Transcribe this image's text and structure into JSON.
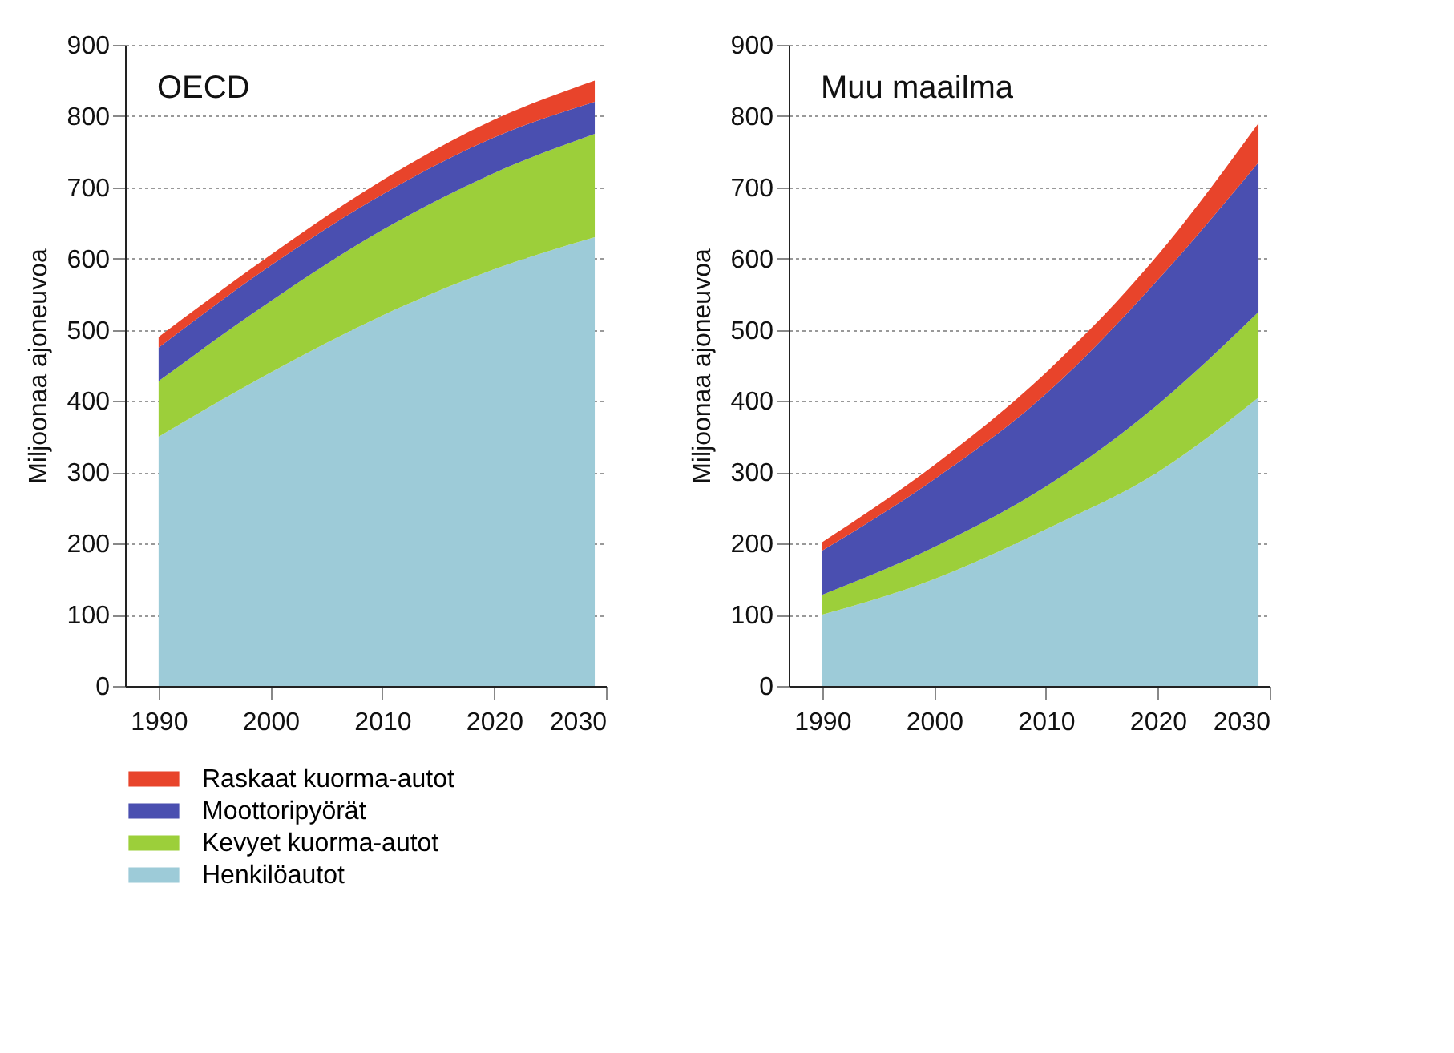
{
  "chart_data": [
    {
      "type": "area",
      "stacked": true,
      "title": "OECD",
      "ylabel": "Miljoonaa ajoneuvoa",
      "x": [
        1990,
        2000,
        2010,
        2020,
        2029
      ],
      "xlim": [
        1987,
        2030
      ],
      "xticks": [
        1990,
        2000,
        2010,
        2020,
        2030
      ],
      "ylim": [
        0,
        900
      ],
      "yticks": [
        0,
        100,
        200,
        300,
        400,
        500,
        600,
        700,
        800,
        900
      ],
      "grid": "y",
      "legend": "bottom",
      "series": [
        {
          "name": "Henkilöautot",
          "color": "#9dcbd8",
          "values": [
            350,
            440,
            520,
            585,
            630
          ]
        },
        {
          "name": "Kevyet kuorma-autot",
          "color": "#9ccf3a",
          "values": [
            78,
            100,
            120,
            135,
            145
          ]
        },
        {
          "name": "Moottoripyörät",
          "color": "#4a4fb0",
          "values": [
            47,
            50,
            50,
            50,
            45
          ]
        },
        {
          "name": "Raskaat kuorma-autot",
          "color": "#e8442b",
          "values": [
            15,
            15,
            20,
            25,
            30
          ]
        }
      ]
    },
    {
      "type": "area",
      "stacked": true,
      "title": "Muu maailma",
      "ylabel": "Miljoonaa ajoneuvoa",
      "x": [
        1990,
        2000,
        2010,
        2020,
        2029
      ],
      "xlim": [
        1987,
        2030
      ],
      "xticks": [
        1990,
        2000,
        2010,
        2020,
        2030
      ],
      "ylim": [
        0,
        900
      ],
      "yticks": [
        0,
        100,
        200,
        300,
        400,
        500,
        600,
        700,
        800,
        900
      ],
      "grid": "y",
      "legend": "bottom",
      "series": [
        {
          "name": "Henkilöautot",
          "color": "#9dcbd8",
          "values": [
            100,
            150,
            220,
            300,
            405
          ]
        },
        {
          "name": "Kevyet kuorma-autot",
          "color": "#9ccf3a",
          "values": [
            28,
            45,
            60,
            95,
            120
          ]
        },
        {
          "name": "Moottoripyörät",
          "color": "#4a4fb0",
          "values": [
            62,
            95,
            130,
            175,
            210
          ]
        },
        {
          "name": "Raskaat kuorma-autot",
          "color": "#e8442b",
          "values": [
            12,
            20,
            30,
            35,
            55
          ]
        }
      ]
    }
  ]
}
